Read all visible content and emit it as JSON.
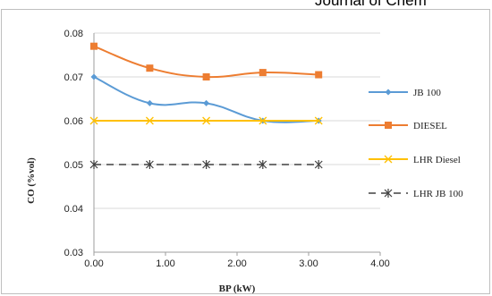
{
  "header": {
    "text": "Journal of Chem"
  },
  "chart_data": {
    "type": "line",
    "title": "",
    "xlabel": "BP (kW)",
    "ylabel": "CO (%vol)",
    "xlim": [
      0,
      4
    ],
    "ylim": [
      0.03,
      0.08
    ],
    "xticks": [
      "0.00",
      "1.00",
      "2.00",
      "3.00",
      "4.00"
    ],
    "yticks": [
      "0.03",
      "0.04",
      "0.05",
      "0.06",
      "0.07",
      "0.08"
    ],
    "xtick_values": [
      0,
      1,
      2,
      3,
      4
    ],
    "ytick_values": [
      0.03,
      0.04,
      0.05,
      0.06,
      0.07,
      0.08
    ],
    "grid": "horizontal",
    "legend_position": "right",
    "x": [
      0,
      0.78,
      1.57,
      2.36,
      3.14
    ],
    "series": [
      {
        "name": "JB 100",
        "values": [
          0.07,
          0.064,
          0.064,
          0.06,
          0.06
        ],
        "color": "#5b9bd5",
        "marker": "diamond",
        "dash": "solid",
        "smooth": true
      },
      {
        "name": "DIESEL",
        "values": [
          0.077,
          0.072,
          0.07,
          0.071,
          0.0705
        ],
        "color": "#ed7d31",
        "marker": "square",
        "dash": "solid",
        "smooth": true
      },
      {
        "name": "LHR Diesel",
        "values": [
          0.06,
          0.06,
          0.06,
          0.06,
          0.06
        ],
        "color": "#ffc000",
        "marker": "x",
        "dash": "solid",
        "smooth": false
      },
      {
        "name": "LHR JB 100",
        "values": [
          0.05,
          0.05,
          0.05,
          0.05,
          0.05
        ],
        "color": "#404040",
        "marker": "star",
        "dash": "dashed",
        "smooth": false
      }
    ]
  }
}
